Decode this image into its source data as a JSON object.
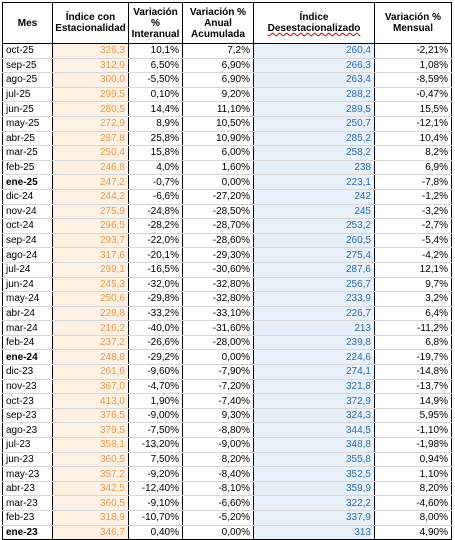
{
  "headers": {
    "mes": "Mes",
    "indice_estacionalidad": "Índice con Estacionalidad",
    "var_interanual": "Variación % Interanual",
    "var_anual_acumulada": "Variación % Anual Acumulada",
    "indice_desestacionalizado_prefix": "Índice ",
    "indice_desestacionalizado_word": "Desestacionalizado",
    "var_mensual": "Variación % Mensual"
  },
  "rows": [
    {
      "mes": "oct-25",
      "idx": "326,3",
      "inter": "10,1%",
      "acum": "7,2%",
      "des": "260,4",
      "mens": "-2,21%",
      "bold": false
    },
    {
      "mes": "sep-25",
      "idx": "312,9",
      "inter": "6,50%",
      "acum": "6,90%",
      "des": "266,3",
      "mens": "1,08%",
      "bold": false
    },
    {
      "mes": "ago-25",
      "idx": "300,0",
      "inter": "-5,50%",
      "acum": "6,90%",
      "des": "263,4",
      "mens": "-8,59%",
      "bold": false
    },
    {
      "mes": "jul-25",
      "idx": "299,5",
      "inter": "0,10%",
      "acum": "9,20%",
      "des": "288,2",
      "mens": "-0,47%",
      "bold": false
    },
    {
      "mes": "jun-25",
      "idx": "280,5",
      "inter": "14,4%",
      "acum": "11,10%",
      "des": "289,5",
      "mens": "15,5%",
      "bold": false
    },
    {
      "mes": "may-25",
      "idx": "272,9",
      "inter": "8,9%",
      "acum": "10,50%",
      "des": "250,7",
      "mens": "-12,1%",
      "bold": false
    },
    {
      "mes": "abr-25",
      "idx": "287,8",
      "inter": "25,8%",
      "acum": "10,90%",
      "des": "285,2",
      "mens": "10,4%",
      "bold": false
    },
    {
      "mes": "mar-25",
      "idx": "250,4",
      "inter": "15,8%",
      "acum": "6,00%",
      "des": "258,2",
      "mens": "8,2%",
      "bold": false
    },
    {
      "mes": "feb-25",
      "idx": "246,8",
      "inter": "4,0%",
      "acum": "1,60%",
      "des": "238",
      "mens": "6,9%",
      "bold": false
    },
    {
      "mes": "ene-25",
      "idx": "247,2",
      "inter": "-0,7%",
      "acum": "0,00%",
      "des": "223,1",
      "mens": "-7,8%",
      "bold": true
    },
    {
      "mes": "dic-24",
      "idx": "244,2",
      "inter": "-6,6%",
      "acum": "-27,20%",
      "des": "242",
      "mens": "-1,2%",
      "bold": false
    },
    {
      "mes": "nov-24",
      "idx": "275,9",
      "inter": "-24,8%",
      "acum": "-28,50%",
      "des": "245",
      "mens": "-3,2%",
      "bold": false
    },
    {
      "mes": "oct-24",
      "idx": "296,5",
      "inter": "-28,2%",
      "acum": "-28,70%",
      "des": "253,2",
      "mens": "-2,7%",
      "bold": false
    },
    {
      "mes": "sep-24",
      "idx": "293,7",
      "inter": "-22,0%",
      "acum": "-28,60%",
      "des": "260,5",
      "mens": "-5,4%",
      "bold": false
    },
    {
      "mes": "ago-24",
      "idx": "317,6",
      "inter": "-20,1%",
      "acum": "-29,30%",
      "des": "275,4",
      "mens": "-4,2%",
      "bold": false
    },
    {
      "mes": "jul-24",
      "idx": "299,1",
      "inter": "-16,5%",
      "acum": "-30,60%",
      "des": "287,6",
      "mens": "12,1%",
      "bold": false
    },
    {
      "mes": "jun-24",
      "idx": "245,3",
      "inter": "-32,0%",
      "acum": "-32,80%",
      "des": "256,7",
      "mens": "9,7%",
      "bold": false
    },
    {
      "mes": "may-24",
      "idx": "250,6",
      "inter": "-29,8%",
      "acum": "-32,80%",
      "des": "233,9",
      "mens": "3,2%",
      "bold": false
    },
    {
      "mes": "abr-24",
      "idx": "228,8",
      "inter": "-33,2%",
      "acum": "-33,10%",
      "des": "226,7",
      "mens": "6,4%",
      "bold": false
    },
    {
      "mes": "mar-24",
      "idx": "216,2",
      "inter": "-40,0%",
      "acum": "-31,60%",
      "des": "213",
      "mens": "-11,2%",
      "bold": false
    },
    {
      "mes": "feb-24",
      "idx": "237,2",
      "inter": "-26,6%",
      "acum": "-28,00%",
      "des": "239,8",
      "mens": "6,8%",
      "bold": false
    },
    {
      "mes": "ene-24",
      "idx": "248,8",
      "inter": "-29,2%",
      "acum": "0,00%",
      "des": "224,6",
      "mens": "-19,7%",
      "bold": true
    },
    {
      "mes": "dic-23",
      "idx": "261,6",
      "inter": "-9,60%",
      "acum": "-7,90%",
      "des": "274,1",
      "mens": "-14,8%",
      "bold": false
    },
    {
      "mes": "nov-23",
      "idx": "367,0",
      "inter": "-4,70%",
      "acum": "-7,20%",
      "des": "321,8",
      "mens": "-13,7%",
      "bold": false
    },
    {
      "mes": "oct-23",
      "idx": "413,0",
      "inter": "1,90%",
      "acum": "-7,40%",
      "des": "372,9",
      "mens": "14,9%",
      "bold": false
    },
    {
      "mes": "sep-23",
      "idx": "376,5",
      "inter": "-9,00%",
      "acum": "9,30%",
      "des": "324,3",
      "mens": "5,95%",
      "bold": false
    },
    {
      "mes": "ago-23",
      "idx": "379,5",
      "inter": "-7,50%",
      "acum": "-8,80%",
      "des": "344,5",
      "mens": "-1,10%",
      "bold": false
    },
    {
      "mes": "jul-23",
      "idx": "358,1",
      "inter": "-13,20%",
      "acum": "-9,00%",
      "des": "348,8",
      "mens": "-1,98%",
      "bold": false
    },
    {
      "mes": "jun-23",
      "idx": "360,5",
      "inter": "7,50%",
      "acum": "8,20%",
      "des": "355,8",
      "mens": "0,94%",
      "bold": false
    },
    {
      "mes": "may-23",
      "idx": "357,2",
      "inter": "-9,20%",
      "acum": "-8,40%",
      "des": "352,5",
      "mens": "1,10%",
      "bold": false
    },
    {
      "mes": "abr-23",
      "idx": "342,5",
      "inter": "-12,40%",
      "acum": "-8,10%",
      "des": "359,9",
      "mens": "8,20%",
      "bold": false
    },
    {
      "mes": "mar-23",
      "idx": "360,5",
      "inter": "-9,10%",
      "acum": "-6,60%",
      "des": "322,2",
      "mens": "-4,60%",
      "bold": false
    },
    {
      "mes": "feb-23",
      "idx": "318,9",
      "inter": "-10,70%",
      "acum": "-5,20%",
      "des": "337,9",
      "mens": "8,00%",
      "bold": false
    },
    {
      "mes": "ene-23",
      "idx": "346,7",
      "inter": "0,40%",
      "acum": "0,00%",
      "des": "313",
      "mens": "4,90%",
      "bold": true
    }
  ],
  "colors": {
    "indice_text": "#e49b4d",
    "indice_bg": "#fdf1e3",
    "desest_text": "#2f6fa8",
    "desest_bg": "#e8f0fa"
  }
}
